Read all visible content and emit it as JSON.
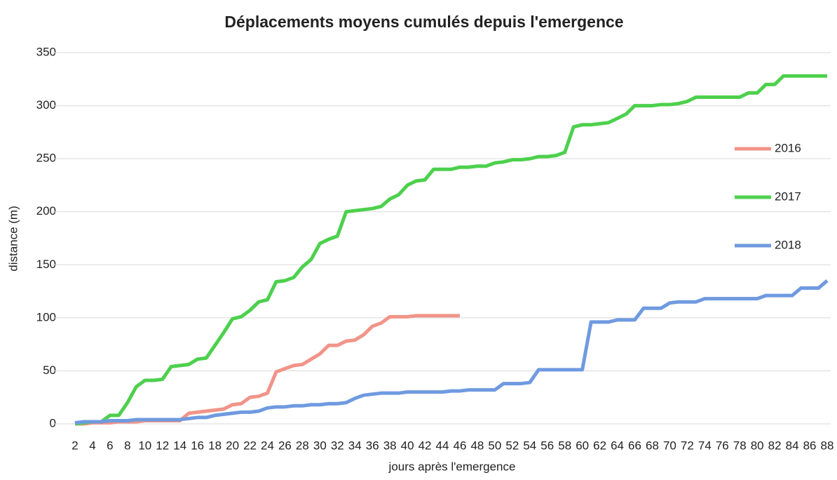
{
  "chart_data": {
    "type": "line",
    "title": "Déplacements moyens cumulés depuis l'emergence",
    "x_label": "jours après l'emergence",
    "y_label": "distance (m)",
    "categories": [
      2,
      null,
      4,
      null,
      6,
      null,
      8,
      null,
      10,
      null,
      12,
      null,
      14,
      null,
      16,
      null,
      18,
      null,
      20,
      null,
      22,
      null,
      24,
      null,
      26,
      null,
      28,
      null,
      30,
      null,
      32,
      null,
      34,
      null,
      36,
      null,
      38,
      null,
      40,
      null,
      42,
      null,
      44,
      null,
      46,
      null,
      48,
      null,
      50,
      null,
      52,
      null,
      54,
      null,
      56,
      null,
      58,
      null,
      60,
      null,
      62,
      null,
      64,
      null,
      66,
      null,
      68,
      null,
      70,
      null,
      72,
      null,
      74,
      null,
      76,
      null,
      78,
      null,
      80,
      null,
      82,
      null,
      84,
      null,
      86,
      null,
      88
    ],
    "ylim": [
      0,
      350
    ],
    "yticks": [
      0,
      50,
      100,
      150,
      200,
      250,
      300,
      350
    ],
    "grid": true,
    "legend": "right",
    "series": [
      {
        "name": "2016",
        "color": "#f19489",
        "values": [
          0,
          0,
          1,
          1,
          1,
          2,
          2,
          2,
          3,
          3,
          3,
          3,
          3,
          10,
          11,
          12,
          13,
          14,
          18,
          19,
          25,
          26,
          29,
          49,
          52,
          55,
          56,
          61,
          66,
          74,
          74,
          78,
          79,
          84,
          92,
          95,
          101,
          101,
          101,
          102,
          102,
          102,
          102,
          102,
          102,
          null,
          null,
          null,
          null,
          null,
          null,
          null,
          null,
          null,
          null,
          null,
          null,
          null,
          null,
          null,
          null,
          null,
          null,
          null,
          null,
          null,
          null,
          null,
          null,
          null,
          null,
          null,
          null,
          null,
          null,
          null,
          null,
          null,
          null,
          null,
          null,
          null,
          null,
          null,
          null,
          null,
          null
        ]
      },
      {
        "name": "2017",
        "color": "#4dd04d",
        "values": [
          0,
          1,
          2,
          2,
          8,
          8,
          20,
          35,
          41,
          41,
          42,
          54,
          55,
          56,
          61,
          62,
          74,
          86,
          99,
          101,
          107,
          115,
          117,
          134,
          135,
          138,
          148,
          155,
          170,
          174,
          177,
          200,
          201,
          202,
          203,
          205,
          212,
          216,
          225,
          229,
          230,
          240,
          240,
          240,
          242,
          242,
          243,
          243,
          246,
          247,
          249,
          249,
          250,
          252,
          252,
          253,
          256,
          280,
          282,
          282,
          283,
          284,
          288,
          292,
          300,
          300,
          300,
          301,
          301,
          302,
          304,
          308,
          308,
          308,
          308,
          308,
          308,
          312,
          312,
          320,
          320,
          328,
          328,
          328,
          328,
          328,
          328
        ]
      },
      {
        "name": "2018",
        "color": "#6f9ae0",
        "values": [
          1,
          2,
          2,
          2,
          3,
          3,
          3,
          4,
          4,
          4,
          4,
          4,
          4,
          5,
          6,
          6,
          8,
          9,
          10,
          11,
          11,
          12,
          15,
          16,
          16,
          17,
          17,
          18,
          18,
          19,
          19,
          20,
          24,
          27,
          28,
          29,
          29,
          29,
          30,
          30,
          30,
          30,
          30,
          31,
          31,
          32,
          32,
          32,
          32,
          38,
          38,
          38,
          39,
          51,
          51,
          51,
          51,
          51,
          51,
          96,
          96,
          96,
          98,
          98,
          98,
          109,
          109,
          109,
          114,
          115,
          115,
          115,
          118,
          118,
          118,
          118,
          118,
          118,
          118,
          121,
          121,
          121,
          121,
          128,
          128,
          128,
          135
        ]
      }
    ]
  }
}
